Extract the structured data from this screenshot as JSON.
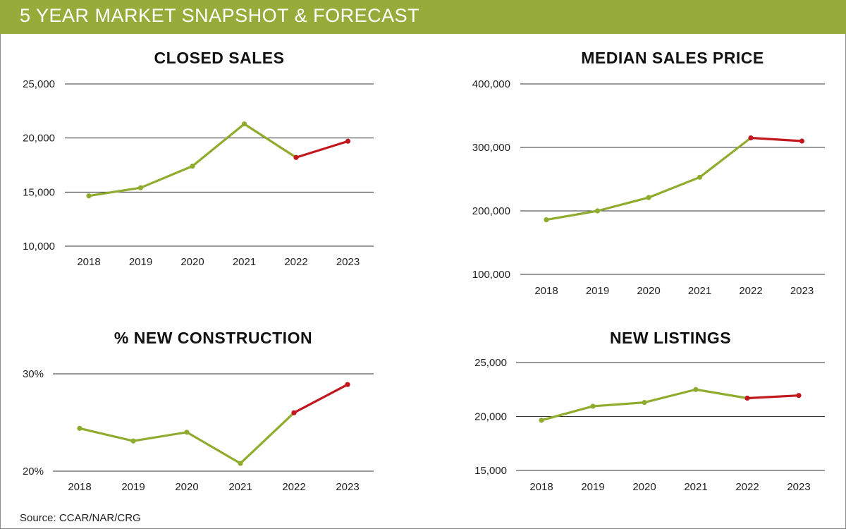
{
  "header": {
    "title": "5 YEAR MARKET SNAPSHOT & FORECAST"
  },
  "footer": {
    "source": "Source: CCAR/NAR/CRG"
  },
  "colors": {
    "header_bg": "#96ab3a",
    "actual_line": "#8fac2e",
    "forecast_line": "#c0181e",
    "grid": "#333333"
  },
  "chart_data": [
    {
      "type": "line",
      "title": "CLOSED SALES",
      "xlabel": "",
      "ylabel": "",
      "categories": [
        "2018",
        "2019",
        "2020",
        "2021",
        "2022",
        "2023"
      ],
      "ylim": [
        10000,
        25000
      ],
      "yticks": [
        10000,
        15000,
        20000,
        25000
      ],
      "ytick_labels": [
        "10,000",
        "15,000",
        "20,000",
        "25,000"
      ],
      "grid": true,
      "series": [
        {
          "values": [
            14650,
            15400,
            17400,
            21300,
            18200,
            19700
          ]
        }
      ],
      "forecast_from_index": 4
    },
    {
      "type": "line",
      "title": "MEDIAN SALES PRICE",
      "xlabel": "",
      "ylabel": "",
      "categories": [
        "2018",
        "2019",
        "2020",
        "2021",
        "2022",
        "2023"
      ],
      "ylim": [
        100000,
        400000
      ],
      "yticks": [
        100000,
        200000,
        300000,
        400000
      ],
      "ytick_labels": [
        "100,000",
        "200,000",
        "300,000",
        "400,000"
      ],
      "grid": true,
      "series": [
        {
          "values": [
            186000,
            200000,
            221000,
            253000,
            315000,
            310000
          ]
        }
      ],
      "forecast_from_index": 4
    },
    {
      "type": "line",
      "title": "% NEW CONSTRUCTION",
      "xlabel": "",
      "ylabel": "",
      "categories": [
        "2018",
        "2019",
        "2020",
        "2021",
        "2022",
        "2023"
      ],
      "ylim": [
        20,
        30
      ],
      "yticks": [
        20,
        30
      ],
      "ytick_labels": [
        "20%",
        "30%"
      ],
      "grid": true,
      "series": [
        {
          "values": [
            24.4,
            23.1,
            24.0,
            20.8,
            26.0,
            28.9
          ]
        }
      ],
      "forecast_from_index": 4
    },
    {
      "type": "line",
      "title": "NEW LISTINGS",
      "xlabel": "",
      "ylabel": "",
      "categories": [
        "2018",
        "2019",
        "2020",
        "2021",
        "2022",
        "2023"
      ],
      "ylim": [
        15000,
        25000
      ],
      "yticks": [
        15000,
        20000,
        25000
      ],
      "ytick_labels": [
        "15,000",
        "20,000",
        "25,000"
      ],
      "grid": true,
      "series": [
        {
          "values": [
            19650,
            20950,
            21300,
            22500,
            21700,
            21950
          ]
        }
      ],
      "forecast_from_index": 4
    }
  ]
}
